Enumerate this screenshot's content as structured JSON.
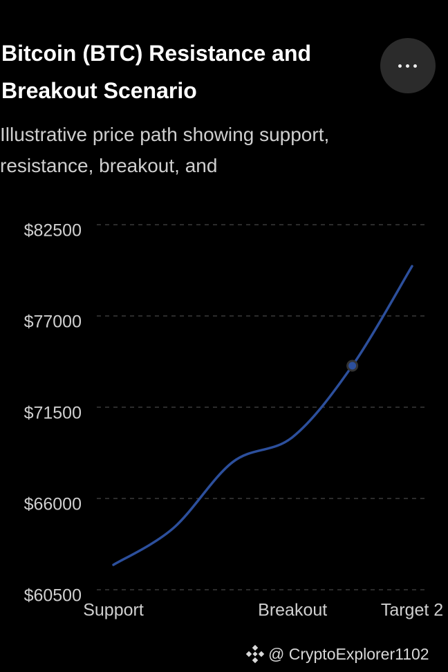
{
  "chart_data": {
    "type": "line",
    "title": "Bitcoin (BTC) Resistance and Breakout Scenario",
    "subtitle": "Illustrative price path showing support, resistance, breakout, and",
    "categories": [
      "Support",
      null,
      null,
      "Breakout",
      null,
      "Target 2"
    ],
    "values": [
      62000,
      64200,
      68200,
      69700,
      74000,
      80000
    ],
    "color": "#2c4f9c",
    "active_point": 4,
    "ylim": [
      60500,
      82500
    ],
    "yticks": [
      {
        "value": 60500,
        "label": "$60500"
      },
      {
        "value": 66000,
        "label": "$66000"
      },
      {
        "value": 71500,
        "label": "$71500"
      },
      {
        "value": 77000,
        "label": "$77000"
      },
      {
        "value": 82500,
        "label": "$82500"
      }
    ],
    "grid": true
  },
  "watermark": "@ CryptoExplorer1102"
}
